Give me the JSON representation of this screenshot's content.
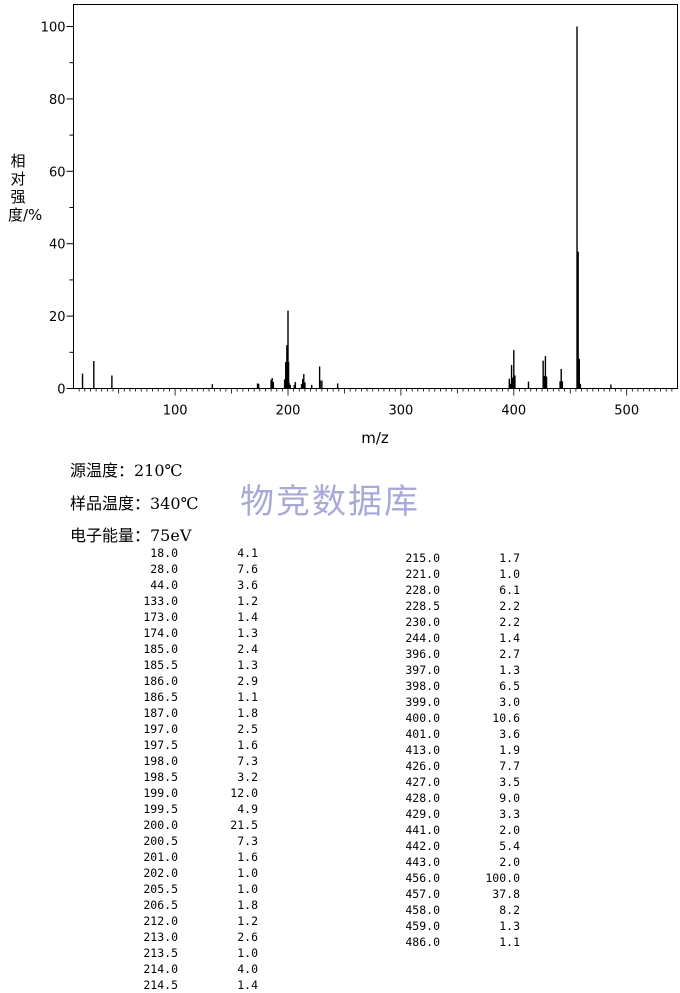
{
  "chart_data": {
    "type": "bar",
    "title": "",
    "xlabel": "m/z",
    "ylabel": "相对强度/%",
    "xlim": [
      10,
      545
    ],
    "ylim": [
      0,
      100
    ],
    "x_ticks": [
      100,
      200,
      300,
      400,
      500
    ],
    "y_ticks": [
      0,
      20,
      40,
      60,
      80,
      100
    ],
    "grid": false,
    "peaks": [
      {
        "mz": 18.0,
        "intensity": 4.1
      },
      {
        "mz": 28.0,
        "intensity": 7.6
      },
      {
        "mz": 44.0,
        "intensity": 3.6
      },
      {
        "mz": 133.0,
        "intensity": 1.2
      },
      {
        "mz": 173.0,
        "intensity": 1.4
      },
      {
        "mz": 174.0,
        "intensity": 1.3
      },
      {
        "mz": 185.0,
        "intensity": 2.4
      },
      {
        "mz": 185.5,
        "intensity": 1.3
      },
      {
        "mz": 186.0,
        "intensity": 2.9
      },
      {
        "mz": 186.5,
        "intensity": 1.1
      },
      {
        "mz": 187.0,
        "intensity": 1.8
      },
      {
        "mz": 197.0,
        "intensity": 2.5
      },
      {
        "mz": 197.5,
        "intensity": 1.6
      },
      {
        "mz": 198.0,
        "intensity": 7.3
      },
      {
        "mz": 198.5,
        "intensity": 3.2
      },
      {
        "mz": 199.0,
        "intensity": 12.0
      },
      {
        "mz": 199.5,
        "intensity": 4.9
      },
      {
        "mz": 200.0,
        "intensity": 21.5
      },
      {
        "mz": 200.5,
        "intensity": 7.3
      },
      {
        "mz": 201.0,
        "intensity": 1.6
      },
      {
        "mz": 202.0,
        "intensity": 1.0
      },
      {
        "mz": 205.5,
        "intensity": 1.0
      },
      {
        "mz": 206.5,
        "intensity": 1.8
      },
      {
        "mz": 212.0,
        "intensity": 1.2
      },
      {
        "mz": 213.0,
        "intensity": 2.6
      },
      {
        "mz": 213.5,
        "intensity": 1.0
      },
      {
        "mz": 214.0,
        "intensity": 4.0
      },
      {
        "mz": 214.5,
        "intensity": 1.4
      },
      {
        "mz": 215.0,
        "intensity": 1.7
      },
      {
        "mz": 221.0,
        "intensity": 1.0
      },
      {
        "mz": 228.0,
        "intensity": 6.1
      },
      {
        "mz": 228.5,
        "intensity": 2.2
      },
      {
        "mz": 230.0,
        "intensity": 2.2
      },
      {
        "mz": 244.0,
        "intensity": 1.4
      },
      {
        "mz": 396.0,
        "intensity": 2.7
      },
      {
        "mz": 397.0,
        "intensity": 1.3
      },
      {
        "mz": 398.0,
        "intensity": 6.5
      },
      {
        "mz": 399.0,
        "intensity": 3.0
      },
      {
        "mz": 400.0,
        "intensity": 10.6
      },
      {
        "mz": 401.0,
        "intensity": 3.6
      },
      {
        "mz": 413.0,
        "intensity": 1.9
      },
      {
        "mz": 426.0,
        "intensity": 7.7
      },
      {
        "mz": 427.0,
        "intensity": 3.5
      },
      {
        "mz": 428.0,
        "intensity": 9.0
      },
      {
        "mz": 429.0,
        "intensity": 3.3
      },
      {
        "mz": 441.0,
        "intensity": 2.0
      },
      {
        "mz": 442.0,
        "intensity": 5.4
      },
      {
        "mz": 443.0,
        "intensity": 2.0
      },
      {
        "mz": 456.0,
        "intensity": 100.0
      },
      {
        "mz": 457.0,
        "intensity": 37.8
      },
      {
        "mz": 458.0,
        "intensity": 8.2
      },
      {
        "mz": 459.0,
        "intensity": 1.3
      },
      {
        "mz": 486.0,
        "intensity": 1.1
      }
    ]
  },
  "conditions": {
    "source_temp": "源温度：210℃",
    "sample_temp": "样品温度：340℃",
    "electron_energy": "电子能量：75eV"
  },
  "watermark": "物竞数据库",
  "peak_table": {
    "left": [
      [
        "18.0",
        "4.1"
      ],
      [
        "28.0",
        "7.6"
      ],
      [
        "44.0",
        "3.6"
      ],
      [
        "133.0",
        "1.2"
      ],
      [
        "173.0",
        "1.4"
      ],
      [
        "174.0",
        "1.3"
      ],
      [
        "185.0",
        "2.4"
      ],
      [
        "185.5",
        "1.3"
      ],
      [
        "186.0",
        "2.9"
      ],
      [
        "186.5",
        "1.1"
      ],
      [
        "187.0",
        "1.8"
      ],
      [
        "197.0",
        "2.5"
      ],
      [
        "197.5",
        "1.6"
      ],
      [
        "198.0",
        "7.3"
      ],
      [
        "198.5",
        "3.2"
      ],
      [
        "199.0",
        "12.0"
      ],
      [
        "199.5",
        "4.9"
      ],
      [
        "200.0",
        "21.5"
      ],
      [
        "200.5",
        "7.3"
      ],
      [
        "201.0",
        "1.6"
      ],
      [
        "202.0",
        "1.0"
      ],
      [
        "205.5",
        "1.0"
      ],
      [
        "206.5",
        "1.8"
      ],
      [
        "212.0",
        "1.2"
      ],
      [
        "213.0",
        "2.6"
      ],
      [
        "213.5",
        "1.0"
      ],
      [
        "214.0",
        "4.0"
      ],
      [
        "214.5",
        "1.4"
      ]
    ],
    "right": [
      [
        "215.0",
        "1.7"
      ],
      [
        "221.0",
        "1.0"
      ],
      [
        "228.0",
        "6.1"
      ],
      [
        "228.5",
        "2.2"
      ],
      [
        "230.0",
        "2.2"
      ],
      [
        "244.0",
        "1.4"
      ],
      [
        "396.0",
        "2.7"
      ],
      [
        "397.0",
        "1.3"
      ],
      [
        "398.0",
        "6.5"
      ],
      [
        "399.0",
        "3.0"
      ],
      [
        "400.0",
        "10.6"
      ],
      [
        "401.0",
        "3.6"
      ],
      [
        "413.0",
        "1.9"
      ],
      [
        "426.0",
        "7.7"
      ],
      [
        "427.0",
        "3.5"
      ],
      [
        "428.0",
        "9.0"
      ],
      [
        "429.0",
        "3.3"
      ],
      [
        "441.0",
        "2.0"
      ],
      [
        "442.0",
        "5.4"
      ],
      [
        "443.0",
        "2.0"
      ],
      [
        "456.0",
        "100.0"
      ],
      [
        "457.0",
        "37.8"
      ],
      [
        "458.0",
        "8.2"
      ],
      [
        "459.0",
        "1.3"
      ],
      [
        "486.0",
        "1.1"
      ]
    ]
  }
}
